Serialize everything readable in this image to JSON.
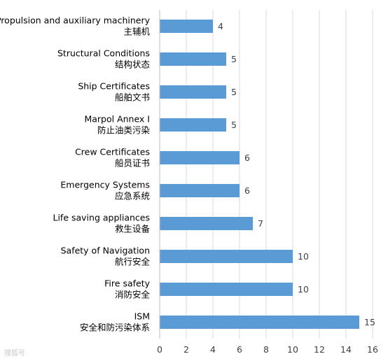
{
  "chart_data": {
    "type": "bar",
    "orientation": "horizontal",
    "categories": [
      [
        "Propulsion and auxiliary machinery",
        "主辅机"
      ],
      [
        "Structural Conditions",
        "结构状态"
      ],
      [
        "Ship Certificates",
        "船舶文书"
      ],
      [
        "Marpol Annex Ⅰ",
        "防止油类污染"
      ],
      [
        "Crew Certificates",
        "船员证书"
      ],
      [
        "Emergency Systems",
        "应急系统"
      ],
      [
        "Life saving appliances",
        "救生设备"
      ],
      [
        "Safety of Navigation",
        "航行安全"
      ],
      [
        "Fire safety",
        "消防安全"
      ],
      [
        "ISM",
        "安全和防污染体系"
      ]
    ],
    "values": [
      4,
      5,
      5,
      5,
      6,
      6,
      7,
      10,
      10,
      15
    ],
    "xlim": [
      0,
      16
    ],
    "xticks": [
      0,
      2,
      4,
      6,
      8,
      10,
      12,
      14,
      16
    ],
    "grid": true,
    "data_labels": true,
    "bar_color": "#5b9bd5",
    "grid_color": "#d9d9d9",
    "title": "",
    "xlabel": "",
    "ylabel": ""
  },
  "watermark": "搜狐号"
}
